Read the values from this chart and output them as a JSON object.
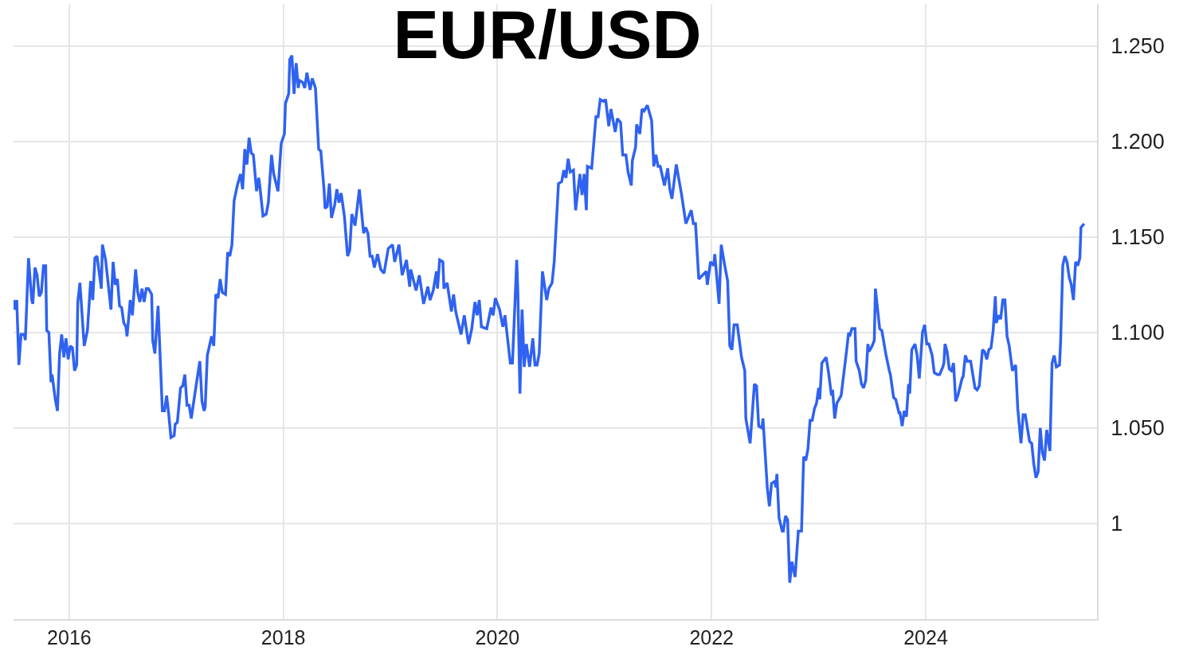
{
  "chart_data": {
    "type": "line",
    "title": "EUR/USD",
    "x": [
      2015.48,
      2015.49,
      2015.51,
      2015.53,
      2015.55,
      2015.58,
      2015.59,
      2015.62,
      2015.65,
      2015.66,
      2015.68,
      2015.7,
      2015.72,
      2015.74,
      2015.76,
      2015.78,
      2015.79,
      2015.81,
      2015.83,
      2015.84,
      2015.87,
      2015.89,
      2015.91,
      2015.93,
      2015.95,
      2015.97,
      2015.99,
      2016.01,
      2016.03,
      2016.05,
      2016.07,
      2016.08,
      2016.1,
      2016.14,
      2016.17,
      2016.2,
      2016.22,
      2016.24,
      2016.26,
      2016.3,
      2016.31,
      2016.34,
      2016.39,
      2016.41,
      2016.43,
      2016.45,
      2016.47,
      2016.49,
      2016.51,
      2016.53,
      2016.54,
      2016.57,
      2016.59,
      2016.62,
      2016.64,
      2016.66,
      2016.68,
      2016.7,
      2016.72,
      2016.74,
      2016.77,
      2016.78,
      2016.8,
      2016.83,
      2016.87,
      2016.89,
      2016.91,
      2016.93,
      2016.95,
      2016.98,
      2016.99,
      2017.01,
      2017.04,
      2017.06,
      2017.08,
      2017.1,
      2017.12,
      2017.14,
      2017.19,
      2017.22,
      2017.24,
      2017.26,
      2017.27,
      2017.29,
      2017.33,
      2017.35,
      2017.37,
      2017.39,
      2017.41,
      2017.43,
      2017.46,
      2017.48,
      2017.5,
      2017.52,
      2017.54,
      2017.57,
      2017.6,
      2017.62,
      2017.64,
      2017.66,
      2017.68,
      2017.7,
      2017.72,
      2017.75,
      2017.77,
      2017.78,
      2017.81,
      2017.84,
      2017.86,
      2017.89,
      2017.91,
      2017.95,
      2017.98,
      2018.01,
      2018.02,
      2018.05,
      2018.06,
      2018.08,
      2018.1,
      2018.12,
      2018.14,
      2018.15,
      2018.18,
      2018.2,
      2018.22,
      2018.25,
      2018.27,
      2018.3,
      2018.33,
      2018.35,
      2018.38,
      2018.39,
      2018.41,
      2018.43,
      2018.45,
      2018.48,
      2018.5,
      2018.52,
      2018.54,
      2018.57,
      2018.6,
      2018.62,
      2018.64,
      2018.67,
      2018.71,
      2018.75,
      2018.77,
      2018.79,
      2018.81,
      2018.83,
      2018.85,
      2018.88,
      2018.91,
      2018.94,
      2018.98,
      2019.02,
      2019.04,
      2019.08,
      2019.11,
      2019.15,
      2019.18,
      2019.19,
      2019.24,
      2019.27,
      2019.31,
      2019.35,
      2019.37,
      2019.4,
      2019.43,
      2019.44,
      2019.46,
      2019.49,
      2019.5,
      2019.53,
      2019.57,
      2019.59,
      2019.61,
      2019.66,
      2019.69,
      2019.73,
      2019.76,
      2019.79,
      2019.81,
      2019.83,
      2019.85,
      2019.9,
      2019.94,
      2019.96,
      2019.98,
      2020.02,
      2020.05,
      2020.07,
      2020.12,
      2020.14,
      2020.18,
      2020.19,
      2020.21,
      2020.23,
      2020.25,
      2020.27,
      2020.3,
      2020.33,
      2020.35,
      2020.37,
      2020.39,
      2020.42,
      2020.46,
      2020.48,
      2020.51,
      2020.53,
      2020.57,
      2020.6,
      2020.62,
      2020.64,
      2020.66,
      2020.68,
      2020.71,
      2020.73,
      2020.77,
      2020.79,
      2020.81,
      2020.83,
      2020.84,
      2020.88,
      2020.92,
      2020.94,
      2020.96,
      2020.99,
      2021.01,
      2021.04,
      2021.06,
      2021.1,
      2021.12,
      2021.15,
      2021.17,
      2021.2,
      2021.22,
      2021.25,
      2021.26,
      2021.29,
      2021.3,
      2021.33,
      2021.35,
      2021.37,
      2021.4,
      2021.44,
      2021.46,
      2021.48,
      2021.5,
      2021.52,
      2021.56,
      2021.59,
      2021.61,
      2021.63,
      2021.67,
      2021.72,
      2021.76,
      2021.81,
      2021.83,
      2021.85,
      2021.88,
      2021.95,
      2021.96,
      2021.99,
      2022.02,
      2022.03,
      2022.07,
      2022.09,
      2022.12,
      2022.15,
      2022.17,
      2022.19,
      2022.21,
      2022.24,
      2022.28,
      2022.31,
      2022.32,
      2022.36,
      2022.4,
      2022.42,
      2022.44,
      2022.47,
      2022.48,
      2022.52,
      2022.54,
      2022.56,
      2022.59,
      2022.6,
      2022.61,
      2022.63,
      2022.66,
      2022.67,
      2022.69,
      2022.71,
      2022.73,
      2022.75,
      2022.78,
      2022.81,
      2022.84,
      2022.86,
      2022.88,
      2022.9,
      2022.92,
      2022.94,
      2022.96,
      2022.98,
      2023.0,
      2023.01,
      2023.03,
      2023.07,
      2023.09,
      2023.12,
      2023.13,
      2023.15,
      2023.17,
      2023.21,
      2023.26,
      2023.28,
      2023.29,
      2023.31,
      2023.34,
      2023.35,
      2023.38,
      2023.4,
      2023.42,
      2023.44,
      2023.46,
      2023.47,
      2023.5,
      2023.52,
      2023.53,
      2023.57,
      2023.59,
      2023.63,
      2023.66,
      2023.67,
      2023.7,
      2023.72,
      2023.75,
      2023.76,
      2023.78,
      2023.8,
      2023.82,
      2023.84,
      2023.85,
      2023.87,
      2023.9,
      2023.92,
      2023.94,
      2023.97,
      2023.99,
      2024.01,
      2024.03,
      2024.06,
      2024.08,
      2024.11,
      2024.13,
      2024.16,
      2024.17,
      2024.18,
      2024.2,
      2024.22,
      2024.24,
      2024.26,
      2024.28,
      2024.3,
      2024.34,
      2024.35,
      2024.37,
      2024.39,
      2024.42,
      2024.44,
      2024.46,
      2024.48,
      2024.5,
      2024.53,
      2024.55,
      2024.57,
      2024.59,
      2024.61,
      2024.63,
      2024.65,
      2024.66,
      2024.68,
      2024.7,
      2024.72,
      2024.74,
      2024.76,
      2024.78,
      2024.81,
      2024.84,
      2024.86,
      2024.89,
      2024.91,
      2024.93,
      2024.97,
      2024.99,
      2025.01,
      2025.03,
      2025.05,
      2025.07,
      2025.09,
      2025.11,
      2025.13,
      2025.16,
      2025.18,
      2025.2,
      2025.22,
      2025.25,
      2025.26,
      2025.28,
      2025.3,
      2025.32,
      2025.34,
      2025.36,
      2025.38,
      2025.4,
      2025.42,
      2025.44,
      2025.45,
      2025.48
    ],
    "series": [
      {
        "color": "#2f62f0",
        "values": [
          1.117,
          1.112,
          1.117,
          1.083,
          1.099,
          1.099,
          1.096,
          1.139,
          1.117,
          1.115,
          1.134,
          1.13,
          1.119,
          1.121,
          1.135,
          1.135,
          1.101,
          1.1,
          1.074,
          1.078,
          1.065,
          1.059,
          1.089,
          1.099,
          1.087,
          1.097,
          1.086,
          1.093,
          1.092,
          1.08,
          1.083,
          1.116,
          1.126,
          1.093,
          1.101,
          1.127,
          1.117,
          1.139,
          1.14,
          1.123,
          1.146,
          1.138,
          1.112,
          1.137,
          1.125,
          1.128,
          1.114,
          1.113,
          1.105,
          1.103,
          1.098,
          1.117,
          1.109,
          1.133,
          1.121,
          1.116,
          1.123,
          1.116,
          1.123,
          1.123,
          1.12,
          1.096,
          1.089,
          1.114,
          1.059,
          1.059,
          1.067,
          1.057,
          1.045,
          1.046,
          1.052,
          1.053,
          1.071,
          1.072,
          1.078,
          1.062,
          1.062,
          1.055,
          1.074,
          1.085,
          1.064,
          1.059,
          1.061,
          1.088,
          1.098,
          1.093,
          1.12,
          1.118,
          1.128,
          1.121,
          1.12,
          1.142,
          1.14,
          1.146,
          1.169,
          1.177,
          1.183,
          1.175,
          1.196,
          1.188,
          1.202,
          1.194,
          1.193,
          1.174,
          1.181,
          1.177,
          1.161,
          1.162,
          1.168,
          1.193,
          1.183,
          1.174,
          1.199,
          1.204,
          1.22,
          1.225,
          1.243,
          1.245,
          1.225,
          1.241,
          1.228,
          1.232,
          1.231,
          1.228,
          1.236,
          1.227,
          1.233,
          1.228,
          1.196,
          1.195,
          1.175,
          1.165,
          1.166,
          1.178,
          1.16,
          1.167,
          1.175,
          1.168,
          1.173,
          1.161,
          1.14,
          1.143,
          1.162,
          1.156,
          1.175,
          1.152,
          1.155,
          1.152,
          1.14,
          1.14,
          1.134,
          1.141,
          1.133,
          1.131,
          1.144,
          1.146,
          1.137,
          1.146,
          1.13,
          1.138,
          1.124,
          1.133,
          1.122,
          1.13,
          1.115,
          1.124,
          1.117,
          1.122,
          1.132,
          1.123,
          1.138,
          1.137,
          1.123,
          1.126,
          1.111,
          1.12,
          1.111,
          1.099,
          1.109,
          1.094,
          1.102,
          1.116,
          1.109,
          1.117,
          1.103,
          1.102,
          1.113,
          1.109,
          1.118,
          1.112,
          1.103,
          1.109,
          1.084,
          1.084,
          1.138,
          1.122,
          1.068,
          1.112,
          1.082,
          1.094,
          1.082,
          1.097,
          1.083,
          1.083,
          1.089,
          1.132,
          1.117,
          1.123,
          1.126,
          1.137,
          1.178,
          1.179,
          1.185,
          1.181,
          1.191,
          1.184,
          1.185,
          1.164,
          1.183,
          1.172,
          1.183,
          1.164,
          1.187,
          1.186,
          1.213,
          1.213,
          1.222,
          1.221,
          1.222,
          1.208,
          1.217,
          1.205,
          1.212,
          1.21,
          1.193,
          1.193,
          1.184,
          1.177,
          1.19,
          1.197,
          1.209,
          1.204,
          1.217,
          1.216,
          1.219,
          1.211,
          1.187,
          1.193,
          1.187,
          1.187,
          1.177,
          1.186,
          1.175,
          1.17,
          1.188,
          1.172,
          1.157,
          1.164,
          1.157,
          1.157,
          1.128,
          1.132,
          1.125,
          1.137,
          1.135,
          1.141,
          1.115,
          1.146,
          1.136,
          1.127,
          1.093,
          1.091,
          1.104,
          1.104,
          1.087,
          1.08,
          1.055,
          1.042,
          1.073,
          1.072,
          1.051,
          1.05,
          1.055,
          1.019,
          1.009,
          1.021,
          1.022,
          1.019,
          1.026,
          1.003,
          0.996,
          0.996,
          1.004,
          1.002,
          0.969,
          0.98,
          0.972,
          0.996,
          0.996,
          1.035,
          1.033,
          1.039,
          1.054,
          1.054,
          1.06,
          1.063,
          1.071,
          1.065,
          1.084,
          1.087,
          1.08,
          1.067,
          1.07,
          1.055,
          1.063,
          1.067,
          1.09,
          1.1,
          1.098,
          1.102,
          1.102,
          1.085,
          1.08,
          1.073,
          1.071,
          1.075,
          1.094,
          1.09,
          1.093,
          1.096,
          1.123,
          1.102,
          1.101,
          1.088,
          1.08,
          1.078,
          1.066,
          1.065,
          1.058,
          1.058,
          1.051,
          1.059,
          1.056,
          1.073,
          1.068,
          1.091,
          1.094,
          1.088,
          1.076,
          1.1,
          1.104,
          1.094,
          1.094,
          1.088,
          1.079,
          1.078,
          1.078,
          1.082,
          1.084,
          1.094,
          1.09,
          1.081,
          1.08,
          1.084,
          1.064,
          1.067,
          1.076,
          1.077,
          1.088,
          1.085,
          1.085,
          1.078,
          1.071,
          1.07,
          1.072,
          1.091,
          1.09,
          1.086,
          1.091,
          1.092,
          1.101,
          1.119,
          1.105,
          1.109,
          1.107,
          1.117,
          1.117,
          1.098,
          1.093,
          1.08,
          1.083,
          1.06,
          1.042,
          1.057,
          1.057,
          1.043,
          1.042,
          1.031,
          1.024,
          1.027,
          1.05,
          1.037,
          1.033,
          1.049,
          1.038,
          1.084,
          1.088,
          1.082,
          1.083,
          1.095,
          1.135,
          1.14,
          1.137,
          1.129,
          1.125,
          1.117,
          1.137,
          1.135,
          1.139,
          1.155,
          1.157
        ]
      }
    ],
    "xlim": [
      2015.48,
      2025.6
    ],
    "xticks": [
      2016,
      2018,
      2020,
      2022,
      2024
    ],
    "ylim": [
      0.95,
      1.272
    ],
    "yticks": [
      {
        "value": 1,
        "label": "1"
      },
      {
        "value": 1.05,
        "label": "1.050"
      },
      {
        "value": 1.1,
        "label": "1.100"
      },
      {
        "value": 1.15,
        "label": "1.150"
      },
      {
        "value": 1.2,
        "label": "1.200"
      },
      {
        "value": 1.25,
        "label": "1.250"
      }
    ],
    "grid": true,
    "marker": "none",
    "line_style": "solid"
  }
}
